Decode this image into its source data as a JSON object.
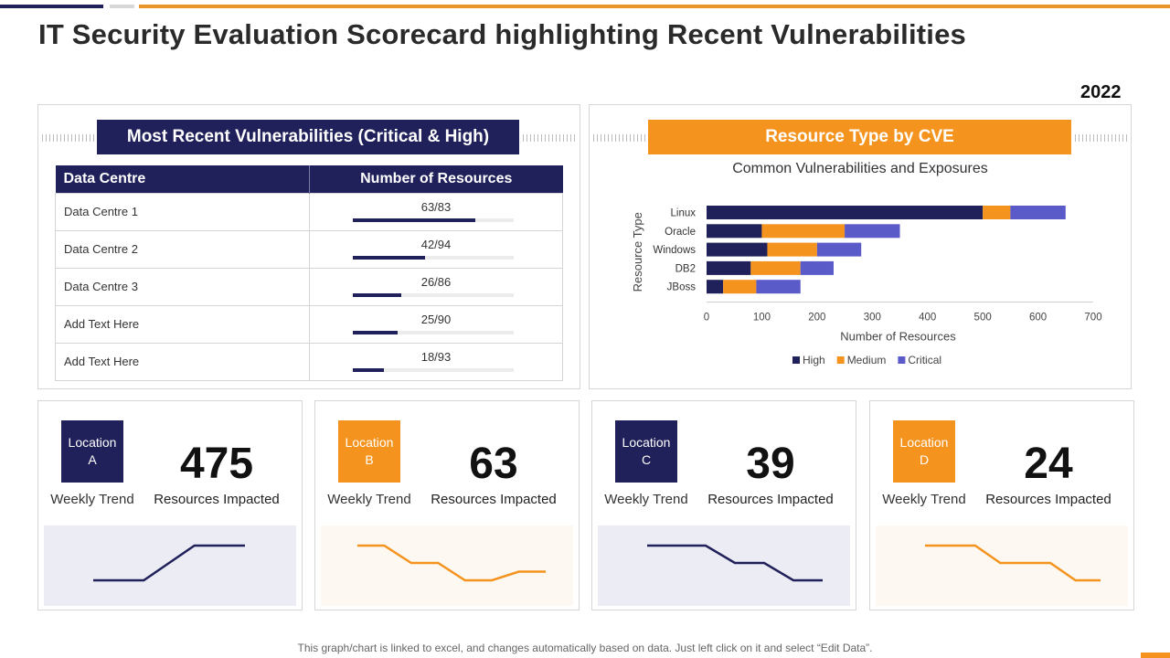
{
  "page_title": "IT Security Evaluation Scorecard highlighting Recent Vulnerabilities",
  "year": "2022",
  "vulnerabilities": {
    "header": "Most Recent Vulnerabilities (Critical & High)",
    "columns": [
      "Data Centre",
      "Number of Resources"
    ],
    "rows": [
      {
        "name": "Data Centre 1",
        "ratio": "63/83",
        "fraction": 0.759
      },
      {
        "name": "Data Centre 2",
        "ratio": "42/94",
        "fraction": 0.447
      },
      {
        "name": "Data Centre 3",
        "ratio": "26/86",
        "fraction": 0.302
      },
      {
        "name": "Add Text Here",
        "ratio": "25/90",
        "fraction": 0.278
      },
      {
        "name": "Add Text Here",
        "ratio": "18/93",
        "fraction": 0.194
      }
    ]
  },
  "cve_panel": {
    "header": "Resource Type by CVE"
  },
  "chart_data": {
    "type": "bar",
    "orientation": "horizontal",
    "stacked": true,
    "title": "Common Vulnerabilities and Exposures",
    "xlabel": "Number of Resources",
    "ylabel": "Resource Type",
    "xlim": [
      0,
      700
    ],
    "xticks": [
      0,
      100,
      200,
      300,
      400,
      500,
      600,
      700
    ],
    "categories": [
      "Linux",
      "Oracle",
      "Windows",
      "DB2",
      "JBoss"
    ],
    "series": [
      {
        "name": "High",
        "color": "#20215a",
        "values": [
          500,
          100,
          110,
          80,
          30
        ]
      },
      {
        "name": "Medium",
        "color": "#f4931e",
        "values": [
          50,
          150,
          90,
          90,
          60
        ]
      },
      {
        "name": "Critical",
        "color": "#5a5ac8",
        "values": [
          100,
          100,
          80,
          60,
          80
        ]
      }
    ],
    "legend": "bottom"
  },
  "locations": [
    {
      "line1": "Location",
      "line2": "A",
      "value": "475",
      "caption": "Resources Impacted",
      "trend_label": "Weekly Trend",
      "theme": "navy",
      "trend": [
        1,
        1,
        2,
        2
      ]
    },
    {
      "line1": "Location",
      "line2": "B",
      "value": "63",
      "caption": "Resources Impacted",
      "trend_label": "Weekly Trend",
      "theme": "orange",
      "trend": [
        4,
        4,
        3,
        3,
        2,
        2,
        2.5,
        2.5
      ]
    },
    {
      "line1": "Location",
      "line2": "C",
      "value": "39",
      "caption": "Resources Impacted",
      "trend_label": "Weekly Trend",
      "theme": "navy",
      "trend": [
        3,
        3,
        3,
        2,
        2,
        1,
        1
      ]
    },
    {
      "line1": "Location",
      "line2": "D",
      "value": "24",
      "caption": "Resources Impacted",
      "trend_label": "Weekly Trend",
      "theme": "orange",
      "trend": [
        3,
        3,
        3,
        2,
        2,
        2,
        1,
        1
      ]
    }
  ],
  "colors": {
    "navy": "#20215a",
    "orange": "#f4931e",
    "critical": "#5a5ac8"
  },
  "footnote": "This graph/chart is linked to excel, and changes automatically based on data. Just left click on it and select “Edit Data”."
}
